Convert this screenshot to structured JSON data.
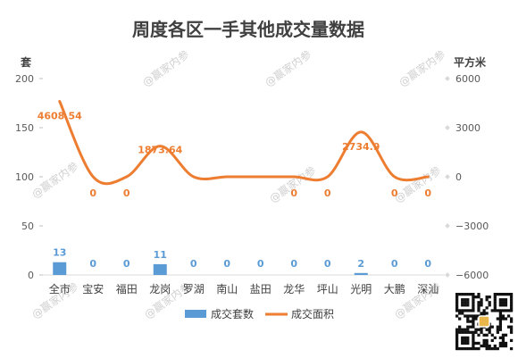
{
  "chart_data": {
    "type": "bar+line",
    "title": "周度各区一手其他成交量数据",
    "categories": [
      "全市",
      "宝安",
      "福田",
      "龙岗",
      "罗湖",
      "南山",
      "盐田",
      "龙华",
      "坪山",
      "光明",
      "大鹏",
      "深汕"
    ],
    "series": [
      {
        "name": "成交套数",
        "type": "bar",
        "axis": "left",
        "color": "#5b9bd5",
        "values": [
          13,
          0,
          0,
          11,
          0,
          0,
          0,
          0,
          0,
          2,
          0,
          0
        ],
        "labels": [
          "13",
          "0",
          "0",
          "11",
          "0",
          "0",
          "0",
          "0",
          "0",
          "2",
          "0",
          "0"
        ]
      },
      {
        "name": "成交面积",
        "type": "line",
        "axis": "right",
        "color": "#ed7d31",
        "values": [
          4608.54,
          0,
          0,
          1873.64,
          0,
          0,
          0,
          0,
          0,
          2734.9,
          0,
          0
        ],
        "labels": [
          "4608.54",
          "0",
          "0",
          "1873.64",
          "",
          "",
          "",
          "0",
          "0",
          "2734.9",
          "0",
          "0"
        ]
      }
    ],
    "y_left": {
      "unit": "套",
      "ylim": [
        0,
        200
      ],
      "ticks": [
        "0",
        "50",
        "100",
        "150",
        "200"
      ]
    },
    "y_right": {
      "unit": "平方米",
      "ylim": [
        -6000,
        6000
      ],
      "ticks": [
        "−6000",
        "−3000",
        "0",
        "3000",
        "6000"
      ]
    },
    "grid": false,
    "legend": "bottom",
    "watermark": "@赢家内参"
  }
}
